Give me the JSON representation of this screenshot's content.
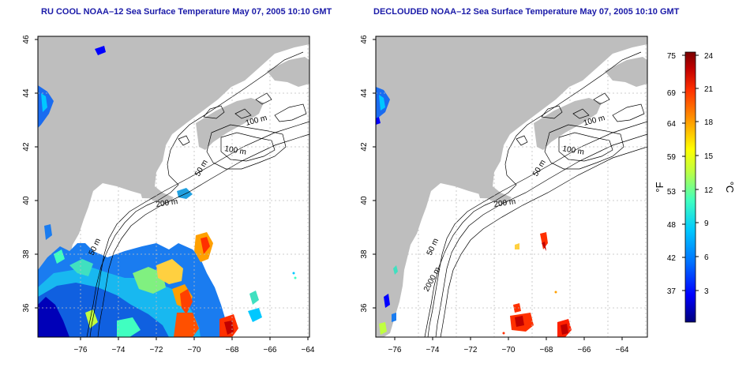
{
  "panels": [
    {
      "title": "RU COOL NOAA–12 Sea Surface Temperature May 07, 2005 10:10 GMT"
    },
    {
      "title": "DECLOUDED NOAA–12 Sea Surface Temperature May 07, 2005 10:10 GMT"
    }
  ],
  "axes": {
    "lon_ticks": [
      "−76",
      "−74",
      "−72",
      "−70",
      "−68",
      "−66",
      "−64"
    ],
    "lat_ticks": [
      "36",
      "38",
      "40",
      "42",
      "44",
      "46"
    ]
  },
  "contour_labels": {
    "left": [
      "100 m",
      "100 m",
      "50 m",
      "200 m",
      "50 m"
    ],
    "right": [
      "100 m",
      "100 m",
      "50 m",
      "200 m",
      "50 m",
      "2000 m"
    ]
  },
  "colorbar": {
    "fahrenheit_ticks": [
      "75",
      "69",
      "64",
      "59",
      "53",
      "48",
      "42",
      "37"
    ],
    "celsius_ticks": [
      "24",
      "21",
      "18",
      "15",
      "12",
      "9",
      "6",
      "3"
    ],
    "fahrenheit_unit": "°F",
    "celsius_unit": "°C"
  },
  "colors": {
    "land": "#bebebe",
    "title": "#1a1aa8",
    "scale": [
      "#00007a",
      "#0000ff",
      "#0070ff",
      "#00c8ff",
      "#40ffc0",
      "#c0ff40",
      "#ffff00",
      "#ffa000",
      "#ff3000",
      "#c00000",
      "#7a0000"
    ]
  }
}
